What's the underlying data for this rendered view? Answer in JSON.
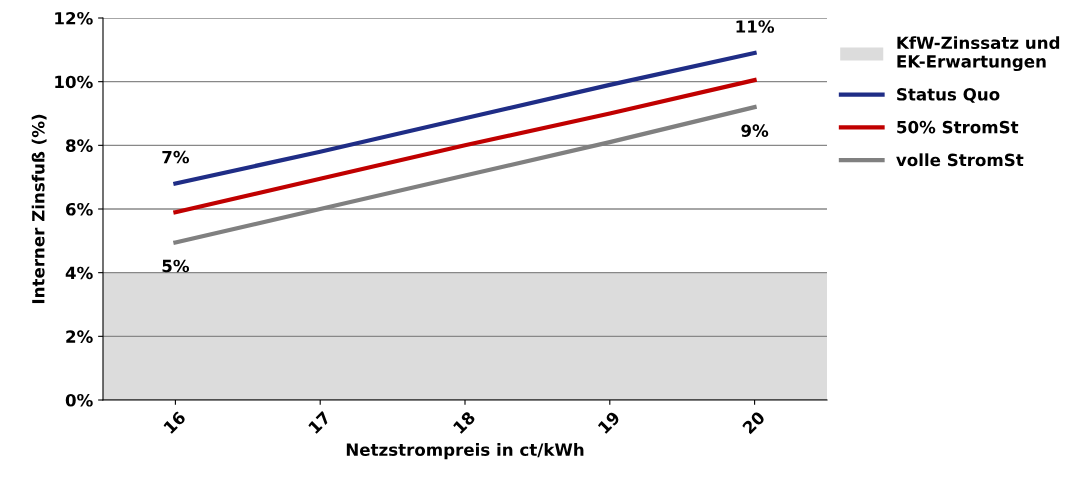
{
  "chart_data": {
    "type": "line",
    "xlabel": "Netzstrompreis in ct/kWh",
    "ylabel": "Interner Zinsfuß (%)",
    "categories": [
      "16",
      "17",
      "18",
      "19",
      "20"
    ],
    "series": [
      {
        "name": "Status Quo",
        "color": "#1f2d86",
        "values": [
          6.8,
          7.8,
          8.85,
          9.9,
          10.9
        ]
      },
      {
        "name": "50% StromSt",
        "color": "#c00000",
        "values": [
          5.9,
          6.95,
          8.0,
          9.0,
          10.05
        ]
      },
      {
        "name": "volle StromSt",
        "color": "#808080",
        "values": [
          4.95,
          6.0,
          7.05,
          8.1,
          9.2
        ]
      }
    ],
    "bands": [
      {
        "axis": "y",
        "from": 0,
        "to": 4,
        "label": "KfW-Zinssatz und EK-Erwartungen",
        "color": "#dcdcdc"
      }
    ],
    "annotations": [
      {
        "text": "7%",
        "x": "16",
        "y": 6.8
      },
      {
        "text": "11%",
        "x": "20",
        "y": 10.9
      },
      {
        "text": "5%",
        "x": "16",
        "y": 4.95
      },
      {
        "text": "9%",
        "x": "20",
        "y": 9.2
      }
    ],
    "ylim": [
      0,
      12
    ],
    "yticks": [
      {
        "value": 0,
        "label": "0%"
      },
      {
        "value": 2,
        "label": "2%"
      },
      {
        "value": 4,
        "label": "4%"
      },
      {
        "value": 6,
        "label": "6%"
      },
      {
        "value": 8,
        "label": "8%"
      },
      {
        "value": 10,
        "label": "10%"
      },
      {
        "value": 12,
        "label": "12%"
      }
    ],
    "grid": "y",
    "legend": "right",
    "marker": "none",
    "line_style": "solid"
  }
}
